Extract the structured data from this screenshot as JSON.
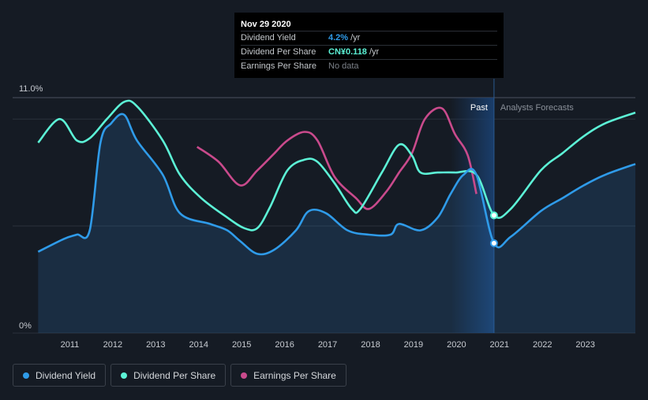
{
  "tooltip": {
    "date": "Nov 29 2020",
    "rows": [
      {
        "label": "Dividend Yield",
        "value": "4.2%",
        "unit": "/yr"
      },
      {
        "label": "Dividend Per Share",
        "value": "CN¥0.118",
        "unit": "/yr"
      },
      {
        "label": "Earnings Per Share",
        "value": "No data",
        "unit": ""
      }
    ]
  },
  "legend": [
    {
      "label": "Dividend Yield",
      "color": "#2f9be9"
    },
    {
      "label": "Dividend Per Share",
      "color": "#5cf2d6"
    },
    {
      "label": "Earnings Per Share",
      "color": "#c94a8c"
    }
  ],
  "chart_data": {
    "type": "line",
    "ylim": [
      0,
      11.0
    ],
    "y_tick_labels": [
      "11.0%",
      "0%"
    ],
    "x_tick_labels": [
      "2011",
      "2012",
      "2013",
      "2014",
      "2015",
      "2016",
      "2017",
      "2018",
      "2019",
      "2020",
      "2021",
      "2022",
      "2023"
    ],
    "regions": {
      "past_label": "Past",
      "forecast_label": "Analysts Forecasts"
    },
    "colors": {
      "yield": "#2f9be9",
      "dps": "#5cf2d6",
      "eps": "#c94a8c"
    },
    "series": [
      {
        "name": "Dividend Yield",
        "x": [
          2010.3,
          2010.9,
          2011.2,
          2011.5,
          2011.75,
          2012.0,
          2012.3,
          2012.6,
          2013.2,
          2013.6,
          2014.3,
          2014.7,
          2015.0,
          2015.4,
          2015.8,
          2016.3,
          2016.6,
          2017.0,
          2017.5,
          2018.0,
          2018.5,
          2018.7,
          2019.2,
          2019.6,
          2019.9,
          2020.2,
          2020.5,
          2020.91,
          2021.3,
          2022.0,
          2022.5,
          2023.0,
          2023.5,
          2024.2
        ],
        "y": [
          3.8,
          4.4,
          4.6,
          4.8,
          8.9,
          9.8,
          10.2,
          9.0,
          7.4,
          5.6,
          5.1,
          4.8,
          4.3,
          3.7,
          3.9,
          4.8,
          5.7,
          5.6,
          4.8,
          4.6,
          4.6,
          5.1,
          4.8,
          5.4,
          6.5,
          7.4,
          7.4,
          4.2,
          4.5,
          5.7,
          6.3,
          6.9,
          7.4,
          7.9
        ]
      },
      {
        "name": "Dividend Per Share",
        "x": [
          2010.3,
          2010.8,
          2011.2,
          2011.5,
          2011.9,
          2012.3,
          2012.6,
          2013.2,
          2013.6,
          2014.1,
          2014.7,
          2015.1,
          2015.4,
          2015.7,
          2016.1,
          2016.5,
          2016.8,
          2017.2,
          2017.6,
          2017.8,
          2018.3,
          2018.7,
          2019.0,
          2019.2,
          2019.6,
          2020.0,
          2020.5,
          2020.91,
          2021.3,
          2022.0,
          2022.5,
          2023.0,
          2023.5,
          2024.2
        ],
        "y": [
          8.9,
          10.0,
          9.0,
          9.1,
          10.0,
          10.8,
          10.6,
          9.0,
          7.4,
          6.3,
          5.4,
          4.9,
          4.9,
          5.9,
          7.6,
          8.1,
          8.0,
          7.0,
          5.8,
          5.8,
          7.5,
          8.8,
          8.3,
          7.5,
          7.5,
          7.5,
          7.4,
          5.5,
          5.8,
          7.6,
          8.4,
          9.2,
          9.8,
          10.3
        ]
      },
      {
        "name": "Earnings Per Share",
        "x": [
          2014.0,
          2014.5,
          2015.0,
          2015.4,
          2015.8,
          2016.1,
          2016.5,
          2016.8,
          2017.2,
          2017.7,
          2018.0,
          2018.4,
          2018.7,
          2019.0,
          2019.3,
          2019.7,
          2020.0,
          2020.3,
          2020.5
        ],
        "y": [
          8.7,
          8.0,
          6.9,
          7.6,
          8.4,
          9.0,
          9.4,
          9.0,
          7.3,
          6.3,
          5.8,
          6.6,
          7.5,
          8.4,
          10.0,
          10.5,
          9.3,
          8.3,
          6.5
        ]
      }
    ],
    "tooltip_marker": {
      "x": 2020.91,
      "yield": 4.2,
      "dps": 5.5
    }
  }
}
